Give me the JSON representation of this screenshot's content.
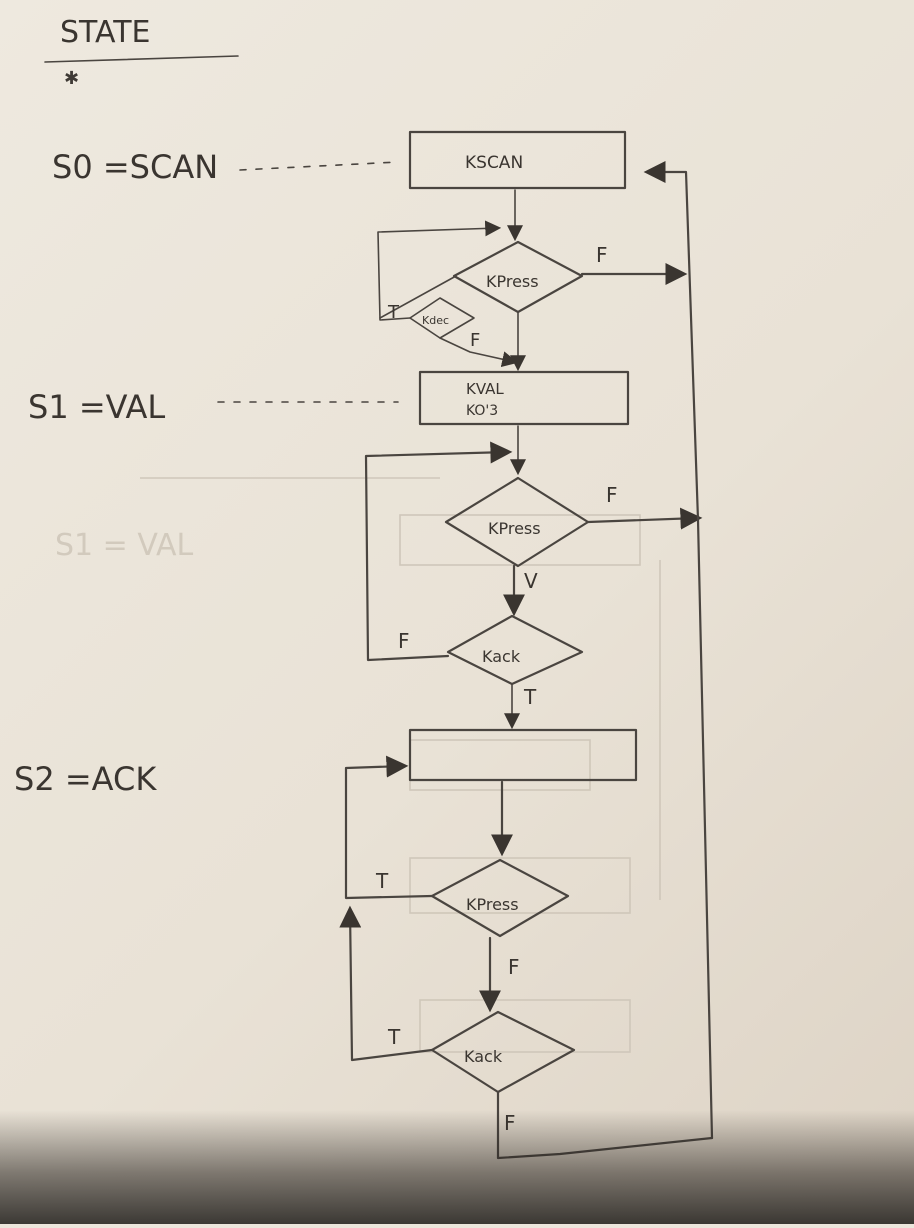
{
  "title": "STATE",
  "state_labels": {
    "s0": "S0 =SCAN",
    "s1": "S1 =VAL",
    "s2": "S2 =ACK",
    "s1_faint": "S1 = VAL"
  },
  "nodes": {
    "kscan_box": "KSCAN",
    "kpress_1": "KPress",
    "kdec_small": "Kdec",
    "kval_box_line1": "KVAL",
    "kval_box_line2": "KO'3",
    "kpress_2": "KPress",
    "kack_1": "Kack",
    "kpress_3": "KPress",
    "kack_2": "Kack"
  },
  "edge_labels": {
    "kpress1_false": "F",
    "kdec_true": "T",
    "kdec_false": "F",
    "kpress2_false": "F",
    "kpress2_true": "V",
    "kack1_false": "F",
    "kack1_true": "T",
    "kpress3_true": "T",
    "kpress3_false": "F",
    "kack2_true": "T",
    "kack2_false": "F"
  }
}
